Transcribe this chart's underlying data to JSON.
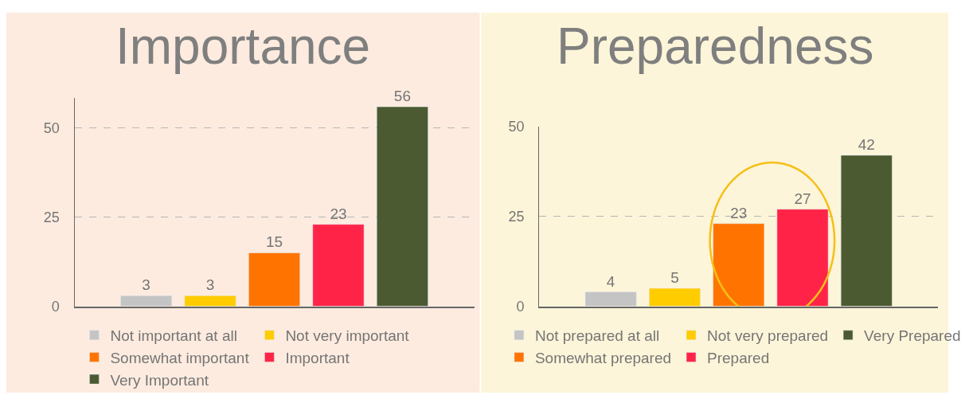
{
  "chart_data": [
    {
      "type": "bar",
      "title": "Importance",
      "categories": [
        null,
        null,
        null,
        null,
        null
      ],
      "series": [
        {
          "name": "Not important at all",
          "color": "#c4c4c4",
          "values": [
            3,
            null,
            null,
            null,
            null
          ]
        },
        {
          "name": "Not very important",
          "color": "#ffcc00",
          "values": [
            null,
            3,
            null,
            null,
            null
          ]
        },
        {
          "name": "Somewhat important",
          "color": "#ff7400",
          "values": [
            null,
            null,
            15,
            null,
            null
          ]
        },
        {
          "name": "Important",
          "color": "#ff2447",
          "values": [
            null,
            null,
            null,
            23,
            null
          ]
        },
        {
          "name": "Very Important",
          "color": "#4b5a30",
          "values": [
            null,
            null,
            null,
            null,
            56
          ]
        }
      ],
      "ylim": [
        0,
        58.4
      ],
      "yticks": [
        0,
        25,
        50
      ],
      "grid": "y",
      "legend": "bottom",
      "data_labels": true
    },
    {
      "type": "bar",
      "title": "Preparedness",
      "categories": [
        null,
        null,
        null,
        null,
        null
      ],
      "series": [
        {
          "name": "Not prepared at all",
          "color": "#c4c4c4",
          "values": [
            4,
            null,
            null,
            null,
            null
          ]
        },
        {
          "name": "Not very prepared",
          "color": "#ffcc00",
          "values": [
            null,
            5,
            null,
            null,
            null
          ]
        },
        {
          "name": "Somewhat prepared",
          "color": "#ff7400",
          "values": [
            null,
            null,
            23,
            null,
            null
          ]
        },
        {
          "name": "Prepared",
          "color": "#ff2447",
          "values": [
            null,
            null,
            null,
            27,
            null
          ]
        },
        {
          "name": "Very Prepared",
          "color": "#4b5a30",
          "values": [
            null,
            null,
            null,
            null,
            42
          ]
        }
      ],
      "ylim": [
        0,
        50
      ],
      "yticks": [
        0,
        25,
        50
      ],
      "grid": "y",
      "legend": "bottom",
      "data_labels": true
    }
  ]
}
